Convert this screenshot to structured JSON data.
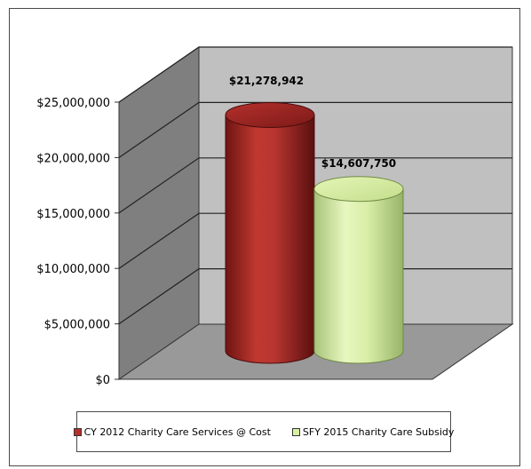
{
  "chart_data": {
    "type": "bar",
    "title": "",
    "categories": [
      "CY 2012 Charity Care Services @ Cost",
      "SFY 2015 Charity Care Subsidy"
    ],
    "values": [
      21278942,
      14607750
    ],
    "value_labels": [
      "$21,278,942",
      "$14,607,750"
    ],
    "colors": [
      "#b5302c",
      "#d9f0a3"
    ],
    "ylim": [
      0,
      25000000
    ],
    "yticks": [
      {
        "value": 0,
        "label": "$0"
      },
      {
        "value": 5000000,
        "label": "$5,000,000"
      },
      {
        "value": 10000000,
        "label": "$10,000,000"
      },
      {
        "value": 15000000,
        "label": "$15,000,000"
      },
      {
        "value": 20000000,
        "label": "$20,000,000"
      },
      {
        "value": 25000000,
        "label": "$25,000,000"
      }
    ],
    "grid": true,
    "legend_position": "bottom",
    "bar_shape": "3d-cylinder"
  }
}
